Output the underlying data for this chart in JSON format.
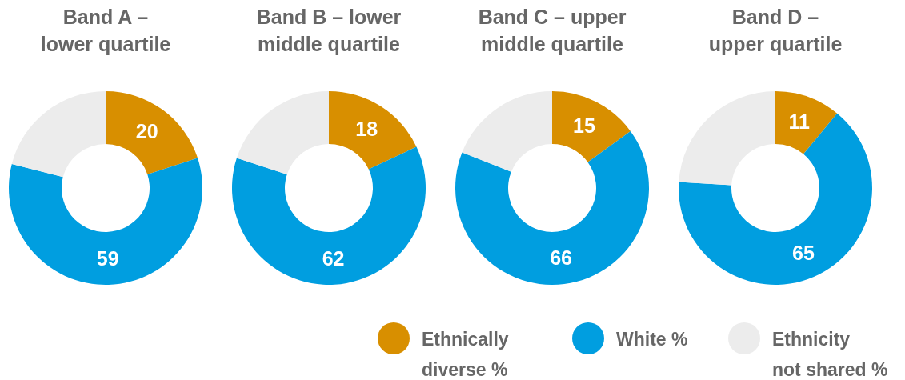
{
  "chart_data": [
    {
      "type": "donut",
      "title": "Band A –\nlower quartile",
      "categories": [
        "Ethnically diverse %",
        "White %",
        "Ethnicity not shared %"
      ],
      "values": [
        20,
        59,
        21
      ],
      "value_labels": [
        "20",
        "59",
        null
      ],
      "colors": [
        "#d88f00",
        "#009ee0",
        "#ececec"
      ],
      "legend": "bottom"
    },
    {
      "type": "donut",
      "title": "Band B – lower\nmiddle quartile",
      "categories": [
        null,
        null,
        null
      ],
      "values": [
        18,
        62,
        20
      ],
      "value_labels": [
        "18",
        "62",
        null
      ],
      "colors": [
        "#d88f00",
        "#009ee0",
        "#ececec"
      ]
    },
    {
      "type": "donut",
      "title": "Band C – upper\nmiddle quartile",
      "categories": [
        null,
        null,
        null
      ],
      "values": [
        15,
        66,
        19
      ],
      "value_labels": [
        "15",
        "66",
        null
      ],
      "colors": [
        "#d88f00",
        "#009ee0",
        "#ececec"
      ]
    },
    {
      "type": "donut",
      "title": "Band D –\nupper quartile",
      "categories": [
        null,
        null,
        null
      ],
      "values": [
        11,
        65,
        24
      ],
      "value_labels": [
        "11",
        "65",
        null
      ],
      "colors": [
        "#d88f00",
        "#009ee0",
        "#ececec"
      ]
    }
  ]
}
